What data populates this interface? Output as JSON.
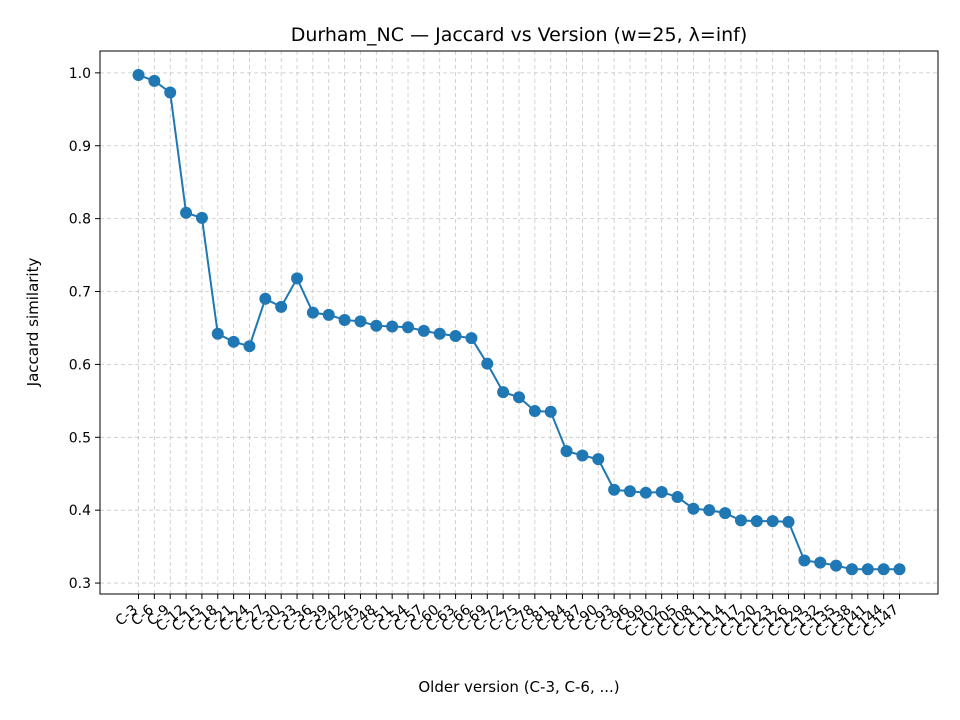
{
  "chart_data": {
    "type": "line",
    "title": "Durham_NC — Jaccard vs Version (w=25, λ=inf)",
    "xlabel": "Older version (C-3, C-6, ...)",
    "ylabel": "Jaccard similarity",
    "ylim": [
      0.285,
      1.03
    ],
    "yticks": [
      0.3,
      0.4,
      0.5,
      0.6,
      0.7,
      0.8,
      0.9,
      1.0
    ],
    "grid": true,
    "categories": [
      "C-3",
      "C-6",
      "C-9",
      "C-12",
      "C-15",
      "C-18",
      "C-21",
      "C-24",
      "C-27",
      "C-30",
      "C-33",
      "C-36",
      "C-39",
      "C-42",
      "C-45",
      "C-48",
      "C-51",
      "C-54",
      "C-57",
      "C-60",
      "C-63",
      "C-66",
      "C-69",
      "C-72",
      "C-75",
      "C-78",
      "C-81",
      "C-84",
      "C-87",
      "C-90",
      "C-93",
      "C-96",
      "C-99",
      "C-102",
      "C-105",
      "C-108",
      "C-111",
      "C-114",
      "C-117",
      "C-120",
      "C-123",
      "C-126",
      "C-129",
      "C-132",
      "C-135",
      "C-138",
      "C-141",
      "C-144",
      "C-147"
    ],
    "series": [
      {
        "color": "#1f77b4",
        "values": [
          0.997,
          0.989,
          0.973,
          0.808,
          0.801,
          0.642,
          0.631,
          0.625,
          0.69,
          0.679,
          0.718,
          0.671,
          0.668,
          0.661,
          0.659,
          0.653,
          0.652,
          0.651,
          0.646,
          0.642,
          0.639,
          0.636,
          0.601,
          0.562,
          0.555,
          0.536,
          0.535,
          0.481,
          0.475,
          0.47,
          0.428,
          0.426,
          0.424,
          0.425,
          0.418,
          0.402,
          0.4,
          0.396,
          0.386,
          0.385,
          0.385,
          0.384,
          0.331,
          0.328,
          0.324,
          0.319,
          0.319,
          0.319,
          0.319
        ]
      }
    ]
  }
}
